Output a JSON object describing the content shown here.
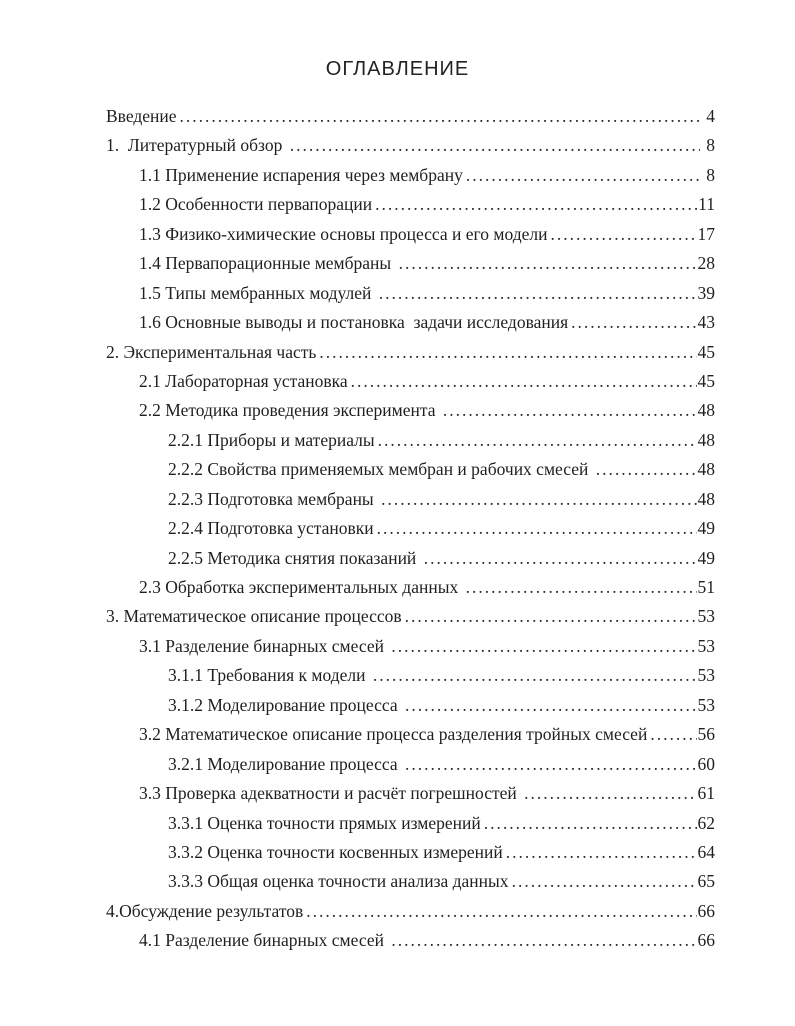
{
  "page": {
    "title": "ОГЛАВЛЕНИЕ"
  },
  "toc": {
    "entries": [
      {
        "label": "Введение",
        "page": "4",
        "level": 0
      },
      {
        "label": "1.  Литературный обзор ",
        "page": "8",
        "level": 0
      },
      {
        "label": "1.1 Применение испарения через мембрану",
        "page": "8",
        "level": 1
      },
      {
        "label": "1.2 Особенности первапорации",
        "page": "11",
        "level": 1
      },
      {
        "label": "1.3 Физико-химические основы процесса и его модели",
        "page": "17",
        "level": 1
      },
      {
        "label": "1.4 Первапорационные мембраны ",
        "page": "28",
        "level": 1
      },
      {
        "label": "1.5 Типы мембранных модулей ",
        "page": "39",
        "level": 1
      },
      {
        "label": "1.6 Основные выводы и постановка  задачи исследования",
        "page": "43",
        "level": 1
      },
      {
        "label": "2. Экспериментальная часть",
        "page": "45",
        "level": 0
      },
      {
        "label": "2.1 Лабораторная установка",
        "page": "45",
        "level": 1
      },
      {
        "label": "2.2 Методика проведения эксперимента ",
        "page": "48",
        "level": 1
      },
      {
        "label": "2.2.1 Приборы и материалы",
        "page": "48",
        "level": 2
      },
      {
        "label": "2.2.2 Свойства применяемых мембран и рабочих смесей ",
        "page": "48",
        "level": 2
      },
      {
        "label": "2.2.3 Подготовка мембраны ",
        "page": "48",
        "level": 2
      },
      {
        "label": "2.2.4 Подготовка установки",
        "page": "49",
        "level": 2
      },
      {
        "label": "2.2.5 Методика снятия показаний ",
        "page": "49",
        "level": 2
      },
      {
        "label": "2.3 Обработка экспериментальных данных ",
        "page": "51",
        "level": 1
      },
      {
        "label": "3. Математическое описание процессов",
        "page": "53",
        "level": 0
      },
      {
        "label": "3.1 Разделение бинарных смесей ",
        "page": "53",
        "level": 1
      },
      {
        "label": "3.1.1 Требования к модели ",
        "page": "53",
        "level": 2
      },
      {
        "label": "3.1.2 Моделирование процесса ",
        "page": "53",
        "level": 2
      },
      {
        "label": "3.2 Математическое описание процесса разделения тройных смесей",
        "page": "56",
        "level": 1
      },
      {
        "label": "3.2.1 Моделирование процесса ",
        "page": "60",
        "level": 2
      },
      {
        "label": "3.3 Проверка адекватности и расчёт погрешностей ",
        "page": "61",
        "level": 1
      },
      {
        "label": "3.3.1 Оценка точности прямых измерений",
        "page": "62",
        "level": 2
      },
      {
        "label": "3.3.2 Оценка точности косвенных измерений",
        "page": "64",
        "level": 2
      },
      {
        "label": "3.3.3 Общая оценка точности анализа данных",
        "page": "65",
        "level": 2
      },
      {
        "label": "4.Обсуждение результатов",
        "page": "66",
        "level": 0
      },
      {
        "label": "4.1 Разделение бинарных смесей ",
        "page": "66",
        "level": 1
      }
    ]
  }
}
